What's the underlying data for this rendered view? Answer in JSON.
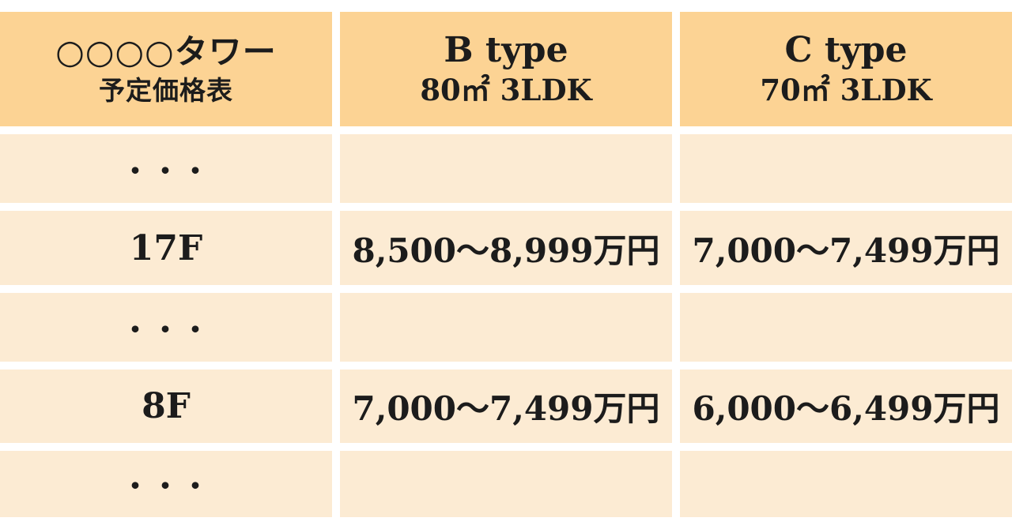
{
  "palette": {
    "header_bg": "#FCD394",
    "cell_bg": "#FCEBD3",
    "text": "#1C1C1C",
    "page_bg": "#FFFFFF"
  },
  "header": {
    "title_line1": "○○○○タワー",
    "title_line2": "予定価格表",
    "b_type_line1": "B type",
    "b_type_line2": "80㎡ 3LDK",
    "c_type_line1": "C type",
    "c_type_line2": "70㎡ 3LDK"
  },
  "rows": [
    {
      "floor": "・・・",
      "b": "",
      "c": ""
    },
    {
      "floor": "17F",
      "b": "8,500〜8,999万円",
      "c": "7,000〜7,499万円"
    },
    {
      "floor": "・・・",
      "b": "",
      "c": ""
    },
    {
      "floor": "8F",
      "b": "7,000〜7,499万円",
      "c": "6,000〜6,499万円"
    },
    {
      "floor": "・・・",
      "b": "",
      "c": ""
    }
  ],
  "chart_data": {
    "type": "table",
    "title": "○○○○タワー 予定価格表",
    "columns": [
      "○○○○タワー 予定価格表",
      "B type 80㎡ 3LDK",
      "C type 70㎡ 3LDK"
    ],
    "rows": [
      [
        "・・・",
        "",
        ""
      ],
      [
        "17F",
        "8,500〜8,999万円",
        "7,000〜7,499万円"
      ],
      [
        "・・・",
        "",
        ""
      ],
      [
        "8F",
        "7,000〜7,499万円",
        "6,000〜6,499万円"
      ],
      [
        "・・・",
        "",
        ""
      ]
    ]
  }
}
